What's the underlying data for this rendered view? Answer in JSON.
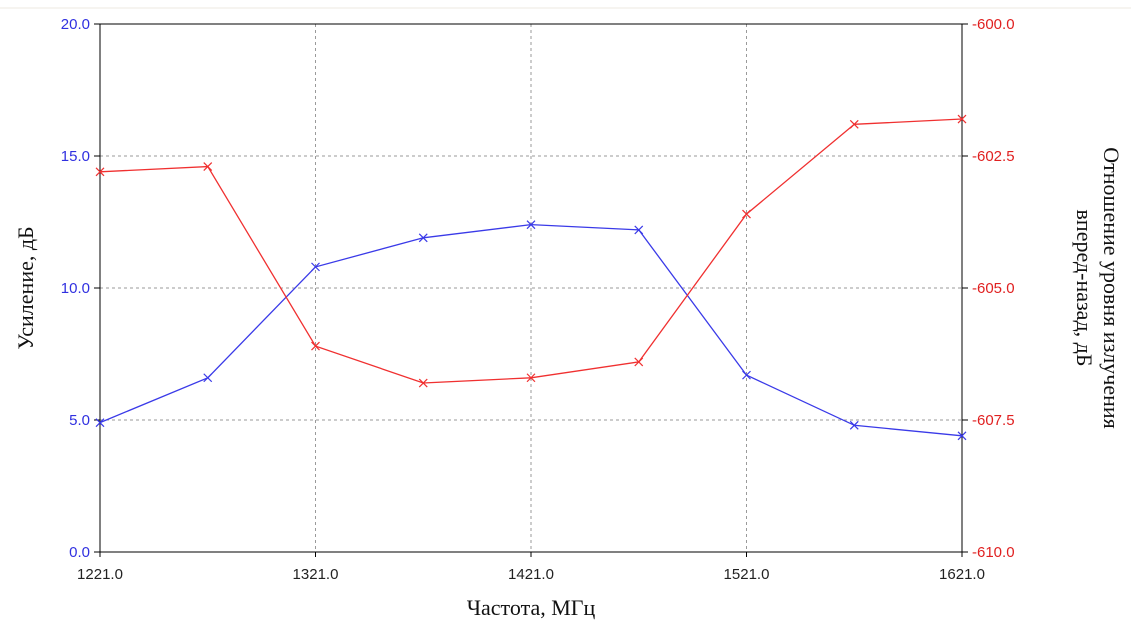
{
  "chart_data": {
    "type": "line",
    "xlabel": "Частота, МГц",
    "ylabel": "Усиление, дБ",
    "ylabel_right_line1": "Отношение уровня излучения",
    "ylabel_right_line2": "вперед-назад, дБ",
    "xlim": [
      1221,
      1621
    ],
    "ylim": [
      0,
      20
    ],
    "ylim_right": [
      -610,
      -600
    ],
    "x_ticks": [
      "1221.0",
      "1321.0",
      "1421.0",
      "1521.0",
      "1621.0"
    ],
    "y_ticks": [
      "0.0",
      "5.0",
      "10.0",
      "15.0",
      "20.0"
    ],
    "y_ticks_right": [
      "-610.0",
      "-607.5",
      "-605.0",
      "-602.5",
      "-600.0"
    ],
    "grid": true,
    "x": [
      1221,
      1271,
      1321,
      1371,
      1421,
      1471,
      1521,
      1571,
      1621
    ],
    "series": [
      {
        "axis": "left",
        "color": "#3a3ae8",
        "values": [
          4.9,
          6.6,
          10.8,
          11.9,
          12.4,
          12.2,
          6.7,
          4.8,
          4.4
        ]
      },
      {
        "axis": "right",
        "color": "#f03030",
        "values": [
          -602.8,
          -602.7,
          -606.1,
          -606.8,
          -606.7,
          -606.4,
          -603.6,
          -601.9,
          -601.8
        ]
      }
    ]
  }
}
